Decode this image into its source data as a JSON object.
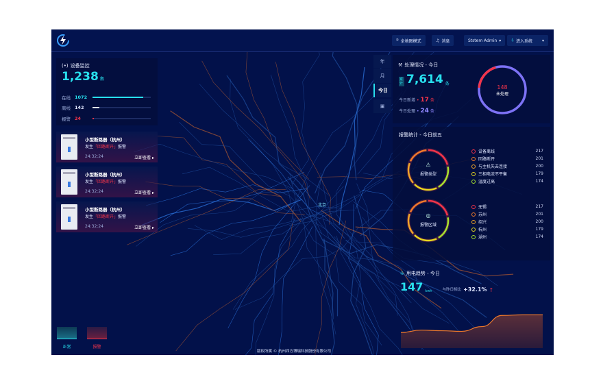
{
  "header": {
    "buttons": {
      "map_mode": "全地图模式",
      "messages": "消息",
      "user": "Ststem Admin",
      "enter_system": "进入系统"
    }
  },
  "device_monitor": {
    "title": "设备监控",
    "total": "1,238",
    "unit": "台",
    "stats": [
      {
        "label": "在线",
        "value": "1072",
        "fraction": 0.87,
        "color": "#28e0ee"
      },
      {
        "label": "离线",
        "value": "142",
        "fraction": 0.12,
        "color": "#dfe6ff"
      },
      {
        "label": "报警",
        "value": "24",
        "fraction": 0.02,
        "color": "#f2344a"
      }
    ]
  },
  "alarm_cards": [
    {
      "name": "小型断路器（杭州）",
      "prefix": "发生",
      "event": "「回路断开」",
      "suffix": "报警",
      "time": "24:32:24",
      "link": "立即查看"
    },
    {
      "name": "小型断路器（杭州）",
      "prefix": "发生",
      "event": "「回路断开」",
      "suffix": "报警",
      "time": "24:32:24",
      "link": "立即查看"
    },
    {
      "name": "小型断路器（杭州）",
      "prefix": "发生",
      "event": "「回路断开」",
      "suffix": "报警",
      "time": "24:32:24",
      "link": "立即查看"
    }
  ],
  "time_tabs": [
    "年",
    "月",
    "今日"
  ],
  "processing": {
    "title": "处理情况 - 今日",
    "cum_label": "累计",
    "total": "7,614",
    "unit": "条",
    "new_label": "今日新增",
    "new_value": "17",
    "handled_label": "今日处理",
    "handled_value": "24",
    "pending": "148",
    "pending_label": "未处理",
    "pending_fraction": 0.19
  },
  "alarm_stats": {
    "title": "报警统计 - 今日前五",
    "type_label": "报警类型",
    "region_label": "报警区域",
    "colors": [
      "#f2344a",
      "#f07a2a",
      "#f0a52a",
      "#e8d81f",
      "#a6e22e"
    ],
    "types": [
      {
        "label": "设备离线",
        "value": "217"
      },
      {
        "label": "回路断开",
        "value": "201"
      },
      {
        "label": "与主机失去连接",
        "value": "200"
      },
      {
        "label": "三相电流不平衡",
        "value": "179"
      },
      {
        "label": "温度过高",
        "value": "174"
      }
    ],
    "regions": [
      {
        "label": "无锡",
        "value": "217"
      },
      {
        "label": "苏州",
        "value": "201"
      },
      {
        "label": "绍兴",
        "value": "200"
      },
      {
        "label": "杭州",
        "value": "179"
      },
      {
        "label": "湖州",
        "value": "174"
      }
    ]
  },
  "power": {
    "title": "用电趋势 - 今日",
    "value": "147",
    "unit": "kwh",
    "compare_label": "与昨日相比",
    "change": "+32.1%",
    "trend": [
      0.3,
      0.38,
      0.36,
      0.34,
      0.5,
      0.88,
      0.9,
      0.9
    ]
  },
  "map": {
    "city": "北京"
  },
  "legend": {
    "normal": "正常",
    "alarm": "报警"
  },
  "footer": {
    "copyright": "版权所属 © 杭州四方博瑞科技股份有限公司"
  }
}
